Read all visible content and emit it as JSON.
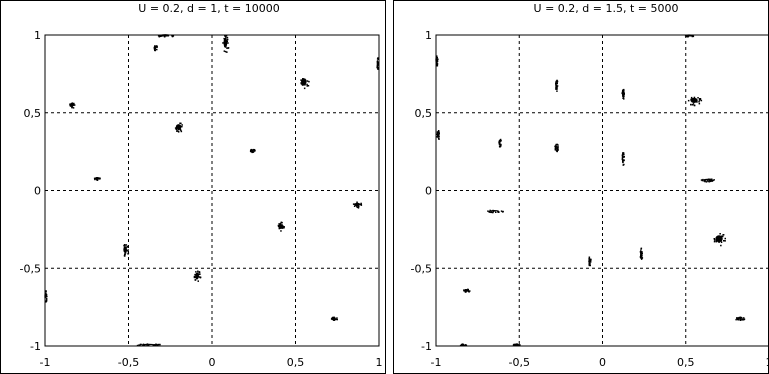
{
  "chart_data": [
    {
      "type": "scatter",
      "title": "U = 0.2, d = 1, t = 10000",
      "xlabel": "",
      "ylabel": "",
      "xlim": [
        -1,
        1
      ],
      "ylim": [
        -1,
        1
      ],
      "xticks": [
        "-1",
        "-0,5",
        "0",
        "0,5",
        "1"
      ],
      "yticks": [
        "1",
        "0,5",
        "0",
        "-0,5",
        "-1"
      ],
      "grid": true,
      "clusters": [
        {
          "x": -0.28,
          "y": 1.0,
          "spread_x": 0.05,
          "spread_y": 0.01
        },
        {
          "x": -0.34,
          "y": 0.92,
          "spread_x": 0.01,
          "spread_y": 0.02
        },
        {
          "x": 0.08,
          "y": 0.95,
          "spread_x": 0.02,
          "spread_y": 0.06
        },
        {
          "x": 0.55,
          "y": 0.7,
          "spread_x": 0.03,
          "spread_y": 0.04
        },
        {
          "x": 0.99,
          "y": 0.82,
          "spread_x": 0.005,
          "spread_y": 0.04
        },
        {
          "x": -0.84,
          "y": 0.55,
          "spread_x": 0.02,
          "spread_y": 0.02
        },
        {
          "x": -0.2,
          "y": 0.41,
          "spread_x": 0.03,
          "spread_y": 0.03
        },
        {
          "x": 0.24,
          "y": 0.26,
          "spread_x": 0.015,
          "spread_y": 0.01
        },
        {
          "x": -0.69,
          "y": 0.08,
          "spread_x": 0.02,
          "spread_y": 0.01
        },
        {
          "x": 0.87,
          "y": -0.09,
          "spread_x": 0.03,
          "spread_y": 0.02
        },
        {
          "x": 0.41,
          "y": -0.23,
          "spread_x": 0.02,
          "spread_y": 0.03
        },
        {
          "x": -0.52,
          "y": -0.38,
          "spread_x": 0.02,
          "spread_y": 0.04
        },
        {
          "x": -0.09,
          "y": -0.55,
          "spread_x": 0.02,
          "spread_y": 0.04
        },
        {
          "x": -1.0,
          "y": -0.68,
          "spread_x": 0.005,
          "spread_y": 0.04
        },
        {
          "x": 0.73,
          "y": -0.82,
          "spread_x": 0.02,
          "spread_y": 0.01
        },
        {
          "x": -0.38,
          "y": -0.99,
          "spread_x": 0.08,
          "spread_y": 0.005
        }
      ]
    },
    {
      "type": "scatter",
      "title": "U = 0.2, d = 1.5, t = 5000",
      "xlabel": "",
      "ylabel": "",
      "xlim": [
        -1,
        1
      ],
      "ylim": [
        -1,
        1
      ],
      "xticks": [
        "-1",
        "-0,5",
        "0",
        "0,5",
        "1"
      ],
      "yticks": [
        "1",
        "0,5",
        "0",
        "-0,5",
        "-1"
      ],
      "grid": true,
      "clusters": [
        {
          "x": 0.52,
          "y": 1.0,
          "spread_x": 0.03,
          "spread_y": 0.005
        },
        {
          "x": -1.0,
          "y": 0.84,
          "spread_x": 0.005,
          "spread_y": 0.04
        },
        {
          "x": -0.28,
          "y": 0.68,
          "spread_x": 0.005,
          "spread_y": 0.04
        },
        {
          "x": 0.12,
          "y": 0.63,
          "spread_x": 0.005,
          "spread_y": 0.04
        },
        {
          "x": 0.55,
          "y": 0.58,
          "spread_x": 0.04,
          "spread_y": 0.03
        },
        {
          "x": -0.99,
          "y": 0.36,
          "spread_x": 0.005,
          "spread_y": 0.03
        },
        {
          "x": -0.62,
          "y": 0.31,
          "spread_x": 0.005,
          "spread_y": 0.03
        },
        {
          "x": -0.28,
          "y": 0.28,
          "spread_x": 0.01,
          "spread_y": 0.03
        },
        {
          "x": 0.12,
          "y": 0.21,
          "spread_x": 0.005,
          "spread_y": 0.05
        },
        {
          "x": 0.63,
          "y": 0.07,
          "spread_x": 0.04,
          "spread_y": 0.01
        },
        {
          "x": -0.65,
          "y": -0.13,
          "spread_x": 0.05,
          "spread_y": 0.005
        },
        {
          "x": 0.7,
          "y": -0.31,
          "spread_x": 0.04,
          "spread_y": 0.04
        },
        {
          "x": 0.23,
          "y": -0.4,
          "spread_x": 0.005,
          "spread_y": 0.04
        },
        {
          "x": -0.08,
          "y": -0.45,
          "spread_x": 0.005,
          "spread_y": 0.03
        },
        {
          "x": -0.82,
          "y": -0.64,
          "spread_x": 0.02,
          "spread_y": 0.01
        },
        {
          "x": 0.82,
          "y": -0.82,
          "spread_x": 0.03,
          "spread_y": 0.01
        },
        {
          "x": -0.84,
          "y": -0.99,
          "spread_x": 0.02,
          "spread_y": 0.005
        },
        {
          "x": -0.52,
          "y": -0.99,
          "spread_x": 0.02,
          "spread_y": 0.005
        }
      ]
    }
  ]
}
